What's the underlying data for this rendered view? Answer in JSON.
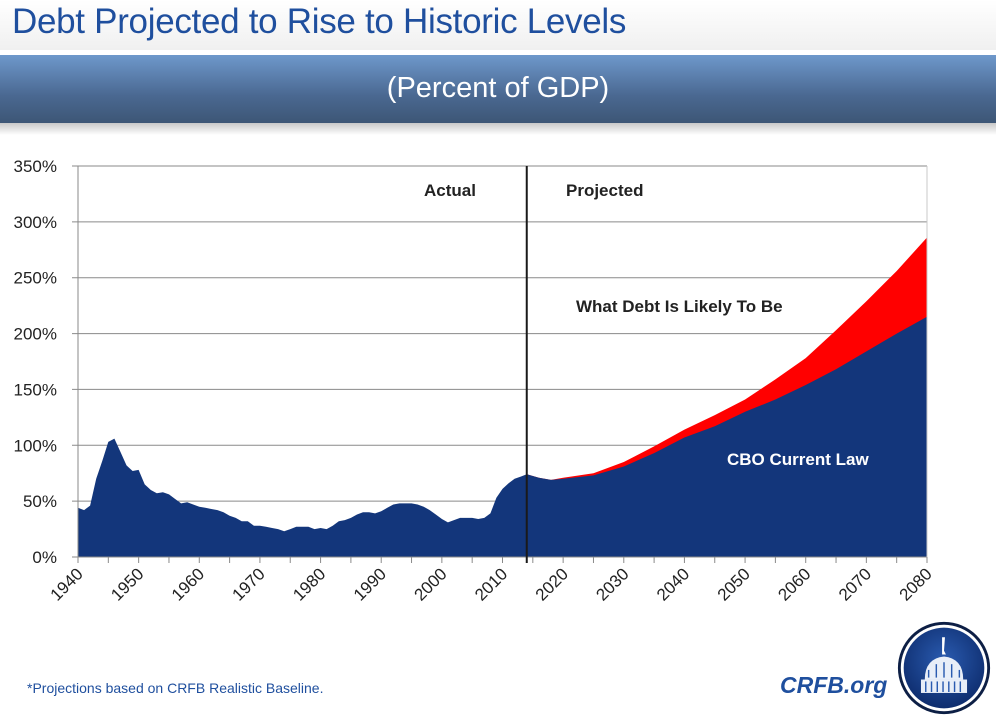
{
  "header": {
    "title": "Debt Projected to Rise to Historic Levels",
    "subtitle": "(Percent of GDP)"
  },
  "footer": {
    "footnote": "*Projections based on CRFB Realistic Baseline.",
    "brand": "CRFB.org",
    "logo_icon": "capitol-dome-icon"
  },
  "colors": {
    "cbo": "#13367b",
    "likely": "#ff0000",
    "title": "#1f4f9e"
  },
  "chart_data": {
    "type": "area",
    "title": "Debt Projected to Rise to Historic Levels",
    "subtitle": "(Percent of GDP)",
    "xlabel": "",
    "ylabel": "",
    "xlim": [
      1940,
      2080
    ],
    "ylim": [
      0,
      350
    ],
    "y_ticks": [
      0,
      50,
      100,
      150,
      200,
      250,
      300,
      350
    ],
    "y_tick_labels": [
      "0%",
      "50%",
      "100%",
      "150%",
      "200%",
      "250%",
      "300%",
      "350%"
    ],
    "x_ticks": [
      1940,
      1950,
      1960,
      1970,
      1980,
      1990,
      2000,
      2010,
      2020,
      2030,
      2040,
      2050,
      2060,
      2070,
      2080
    ],
    "x_tick_labels": [
      "1940",
      "1950",
      "1960",
      "1970",
      "1980",
      "1990",
      "2000",
      "2010",
      "2020",
      "2030",
      "2040",
      "2050",
      "2060",
      "2070",
      "2080"
    ],
    "grid": true,
    "divider_year": 2014,
    "annotations": {
      "actual": "Actual",
      "projected": "Projected",
      "likely": "What Debt Is Likely To Be",
      "cbo": "CBO Current Law"
    },
    "series": [
      {
        "name": "CBO Current Law",
        "color": "#13367b",
        "x": [
          1940,
          1941,
          1942,
          1943,
          1944,
          1945,
          1946,
          1947,
          1948,
          1949,
          1950,
          1951,
          1952,
          1953,
          1954,
          1955,
          1956,
          1957,
          1958,
          1959,
          1960,
          1961,
          1962,
          1963,
          1964,
          1965,
          1966,
          1967,
          1968,
          1969,
          1970,
          1971,
          1972,
          1973,
          1974,
          1975,
          1976,
          1977,
          1978,
          1979,
          1980,
          1981,
          1982,
          1983,
          1984,
          1985,
          1986,
          1987,
          1988,
          1989,
          1990,
          1991,
          1992,
          1993,
          1994,
          1995,
          1996,
          1997,
          1998,
          1999,
          2000,
          2001,
          2002,
          2003,
          2004,
          2005,
          2006,
          2007,
          2008,
          2009,
          2010,
          2011,
          2012,
          2013,
          2014,
          2016,
          2018,
          2020,
          2025,
          2030,
          2035,
          2040,
          2045,
          2050,
          2055,
          2060,
          2065,
          2070,
          2075,
          2080
        ],
        "values": [
          44,
          42,
          46,
          70,
          86,
          103,
          106,
          94,
          82,
          77,
          78,
          65,
          60,
          57,
          58,
          56,
          52,
          48,
          49,
          47,
          45,
          44,
          43,
          42,
          40,
          37,
          35,
          32,
          32,
          28,
          28,
          27,
          26,
          25,
          23,
          25,
          27,
          27,
          27,
          25,
          26,
          25,
          28,
          32,
          33,
          35,
          38,
          40,
          40,
          39,
          41,
          44,
          47,
          48,
          48,
          48,
          47,
          45,
          42,
          38,
          34,
          31,
          33,
          35,
          35,
          35,
          34,
          35,
          39,
          53,
          61,
          66,
          70,
          72,
          74,
          71,
          69,
          70,
          73,
          81,
          93,
          107,
          117,
          130,
          141,
          154,
          168,
          184,
          200,
          215
        ]
      },
      {
        "name": "What Debt Is Likely To Be",
        "color": "#ff0000",
        "x": [
          2014,
          2016,
          2018,
          2020,
          2025,
          2030,
          2035,
          2040,
          2045,
          2050,
          2055,
          2060,
          2065,
          2070,
          2075,
          2080
        ],
        "values": [
          74,
          71,
          69,
          71,
          75,
          85,
          99,
          114,
          127,
          141,
          159,
          178,
          203,
          229,
          256,
          286
        ]
      }
    ]
  }
}
